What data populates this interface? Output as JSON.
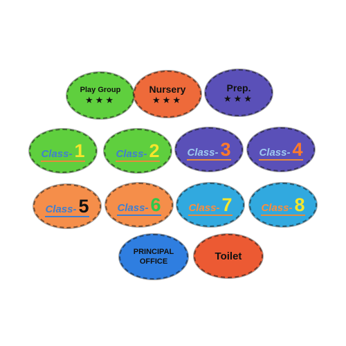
{
  "colors": {
    "green": "#5fcf3e",
    "orange": "#ee6a3a",
    "purple": "#5a50b8",
    "light_orange": "#f58e4a",
    "sky_blue": "#31a9df",
    "blue": "#2f7ee0",
    "orange_red": "#ec5a33",
    "num_yellow": "#f5e62c",
    "num_orange": "#ff7a2a",
    "num_green": "#2ec84a",
    "num_black": "#111111",
    "word_blue": "#3f7fd0",
    "word_yellow": "#f0e030",
    "word_lightblue": "#9ec8f0",
    "word_orange": "#ff8c3a"
  },
  "signs": {
    "play_group": {
      "label": "Play Group",
      "stars": "★★★"
    },
    "nursery": {
      "label": "Nursery",
      "stars": "★★★"
    },
    "prep": {
      "label": "Prep.",
      "stars": "★★★"
    },
    "class_word": "Class-",
    "classes": [
      "1",
      "2",
      "3",
      "4",
      "5",
      "6",
      "7",
      "8"
    ],
    "principal_line1": "PRINCIPAL",
    "principal_line2": "OFFICE",
    "toilet": "Toilet"
  }
}
